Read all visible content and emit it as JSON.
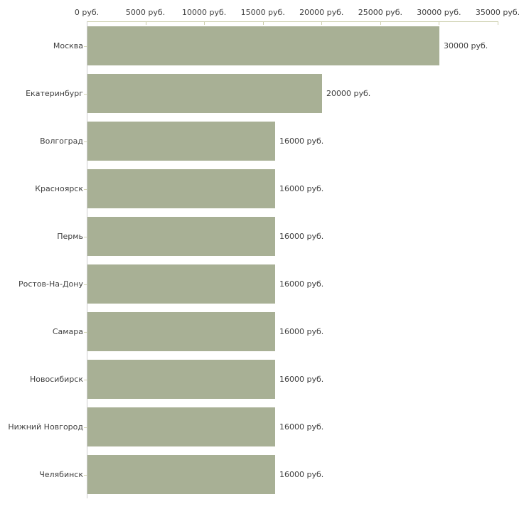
{
  "chart_data": {
    "type": "bar",
    "orientation": "horizontal",
    "title": "",
    "xlabel": "",
    "ylabel": "",
    "unit": "руб.",
    "xlim": [
      0,
      35000
    ],
    "grid": false,
    "legend": false,
    "x_tick_values": [
      0,
      5000,
      10000,
      15000,
      20000,
      25000,
      30000,
      35000
    ],
    "x_tick_labels": [
      "0 руб.",
      "5000 руб.",
      "10000 руб.",
      "15000 руб.",
      "20000 руб.",
      "25000 руб.",
      "30000 руб.",
      "35000 руб."
    ],
    "categories": [
      "Москва",
      "Екатеринбург",
      "Волгоград",
      "Красноярск",
      "Пермь",
      "Ростов-На-Дону",
      "Самара",
      "Новосибирск",
      "Нижний Новгород",
      "Челябинск"
    ],
    "values": [
      30000,
      20000,
      16000,
      16000,
      16000,
      16000,
      16000,
      16000,
      16000,
      16000
    ],
    "value_labels": [
      "30000 руб.",
      "20000 руб.",
      "16000 руб.",
      "16000 руб.",
      "16000 руб.",
      "16000 руб.",
      "16000 руб.",
      "16000 руб.",
      "16000 руб.",
      "16000 руб."
    ],
    "colors": {
      "bar": "#a8b095",
      "x_axis": "#ccceac",
      "y_axis": "#cccccc",
      "y_tick": "#d4d6b6",
      "text": "#3f3f3f"
    }
  }
}
